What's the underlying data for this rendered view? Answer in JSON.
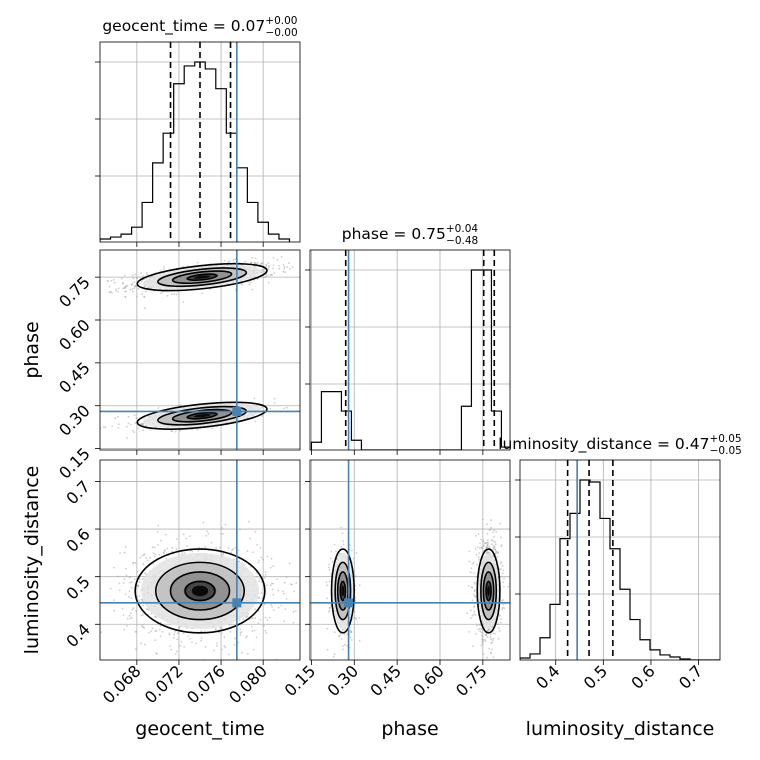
{
  "chart_data": {
    "type": "corner",
    "parameters": [
      "geocent_time",
      "phase",
      "luminosity_distance"
    ],
    "truths": {
      "geocent_time": 0.0775,
      "phase": 0.28,
      "luminosity_distance": 0.445
    },
    "colors": {
      "truth": "#4682b4",
      "hist": "#000000",
      "grid": "#b0b0b0",
      "points": "#a0a0a0"
    },
    "grid": true,
    "titles": {
      "geocent_time": {
        "name": "geocent_time",
        "median": "0.07",
        "plus": "+0.00",
        "minus": "−0.00"
      },
      "phase": {
        "name": "phase",
        "median": "0.75",
        "plus": "+0.04",
        "minus": "−0.48"
      },
      "luminosity_distance": {
        "name": "luminosity_distance",
        "median": "0.47",
        "plus": "+0.05",
        "minus": "−0.05"
      }
    },
    "axis_labels": {
      "geocent_time": "geocent_time",
      "phase": "phase",
      "luminosity_distance": "luminosity_distance"
    },
    "ranges": {
      "geocent_time": [
        0.0645,
        0.0835
      ],
      "phase": [
        0.145,
        0.845
      ],
      "luminosity_distance": [
        0.325,
        0.745
      ]
    },
    "ticks": {
      "geocent_time": {
        "values": [
          0.068,
          0.072,
          0.076,
          0.08
        ],
        "labels": [
          "0.068",
          "0.072",
          "0.076",
          "0.080"
        ]
      },
      "phase": {
        "values": [
          0.15,
          0.3,
          0.45,
          0.6,
          0.75
        ],
        "labels": [
          "0.15",
          "0.30",
          "0.45",
          "0.60",
          "0.75"
        ]
      },
      "luminosity_distance": {
        "values": [
          0.4,
          0.5,
          0.6,
          0.7
        ],
        "labels": [
          "0.4",
          "0.5",
          "0.6",
          "0.7"
        ]
      }
    },
    "quantiles": {
      "geocent_time": [
        0.0712,
        0.074,
        0.0769
      ],
      "phase": [
        0.27,
        0.753,
        0.79
      ],
      "luminosity_distance": [
        0.425,
        0.47,
        0.52
      ]
    },
    "histograms": {
      "geocent_time": {
        "bins": [
          0.0645,
          0.0655,
          0.0665,
          0.0675,
          0.0685,
          0.0695,
          0.0705,
          0.0715,
          0.0725,
          0.0735,
          0.0745,
          0.0755,
          0.0765,
          0.0775,
          0.0785,
          0.0795,
          0.0805,
          0.0815,
          0.0825
        ],
        "counts": [
          3,
          5,
          8,
          15,
          40,
          80,
          110,
          160,
          178,
          182,
          175,
          155,
          110,
          75,
          40,
          20,
          8,
          3
        ]
      },
      "phase": {
        "bins": [
          0.15,
          0.185,
          0.22,
          0.255,
          0.29,
          0.325,
          0.36,
          0.395,
          0.43,
          0.465,
          0.5,
          0.535,
          0.57,
          0.605,
          0.64,
          0.675,
          0.71,
          0.745,
          0.78,
          0.815,
          0.85
        ],
        "counts": [
          8,
          60,
          60,
          40,
          10,
          0,
          0,
          0,
          0,
          0,
          0,
          0,
          0,
          0,
          0,
          45,
          185,
          185,
          40,
          3
        ]
      },
      "luminosity_distance": {
        "bins": [
          0.325,
          0.346,
          0.367,
          0.388,
          0.409,
          0.43,
          0.451,
          0.472,
          0.493,
          0.514,
          0.535,
          0.556,
          0.577,
          0.598,
          0.619,
          0.64,
          0.661,
          0.682,
          0.703,
          0.724,
          0.745
        ],
        "counts": [
          2,
          6,
          22,
          55,
          120,
          145,
          178,
          176,
          140,
          110,
          70,
          40,
          20,
          10,
          5,
          3,
          1,
          0,
          0,
          0
        ]
      }
    },
    "clusters_2d": {
      "phase_vs_geocent_time": [
        {
          "x": 0.0742,
          "y": 0.75,
          "sx": 0.0028,
          "sy": 0.02,
          "rho": 0.55,
          "n": 900
        },
        {
          "x": 0.0742,
          "y": 0.265,
          "sx": 0.0028,
          "sy": 0.02,
          "rho": 0.55,
          "n": 350
        }
      ],
      "luminosity_distance_vs_geocent_time": [
        {
          "x": 0.074,
          "y": 0.47,
          "sx": 0.0028,
          "sy": 0.04,
          "rho": 0.0,
          "n": 1200
        }
      ],
      "luminosity_distance_vs_phase": [
        {
          "x": 0.77,
          "y": 0.47,
          "sx": 0.018,
          "sy": 0.04,
          "rho": 0.0,
          "n": 850
        },
        {
          "x": 0.26,
          "y": 0.47,
          "sx": 0.018,
          "sy": 0.04,
          "rho": 0.0,
          "n": 350
        }
      ]
    }
  }
}
